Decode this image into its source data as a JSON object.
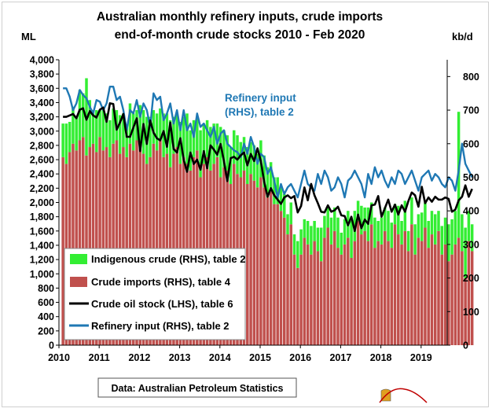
{
  "chart_data": {
    "type": "bar",
    "title_lines": [
      "Australian monthly refinery inputs, crude imports",
      "end-of-month crude stocks 2010 - Feb 2020"
    ],
    "left_axis_label": "ML",
    "right_axis_label": "kb/d",
    "left_ylim": [
      0,
      4000
    ],
    "right_ylim": [
      0,
      850
    ],
    "left_ticks": [
      "4,000",
      "3,800",
      "3,600",
      "3,400",
      "3,200",
      "3,000",
      "2,800",
      "2,600",
      "2,400",
      "2,200",
      "2,000",
      "1,800",
      "1,600",
      "1,400",
      "1,200",
      "1,000",
      "800",
      "600",
      "400",
      "200",
      "0"
    ],
    "right_ticks": [
      "800",
      "700",
      "600",
      "500",
      "400",
      "300",
      "200",
      "100",
      "0"
    ],
    "x_ticks": [
      "2010",
      "2011",
      "2012",
      "2013",
      "2014",
      "2015",
      "2016",
      "2017",
      "2018",
      "2019"
    ],
    "start_month": "2010-01",
    "grid": false,
    "annotation": [
      "Refinery input",
      "(RHS), table 2"
    ],
    "legend": {
      "placement": "bottom-left",
      "entries": [
        {
          "name": "Indigenous crude (RHS), table 2",
          "color": "#33ee33",
          "kind": "bar"
        },
        {
          "name": "Crude imports (RHS), table 4",
          "color": "#c0504d",
          "kind": "bar"
        },
        {
          "name": "Crude oil stock (LHS), table 6",
          "color": "#000000",
          "kind": "line"
        },
        {
          "name": "Refinery input (RHS), table 2",
          "color": "#1f78b4",
          "kind": "line"
        }
      ]
    },
    "source_note": "Data: Australian Petroleum Statistics",
    "series": [
      {
        "name": "Crude imports (RHS), table 4",
        "axis": "right",
        "color": "#c0504d",
        "values": [
          560,
          540,
          575,
          600,
          580,
          610,
          620,
          565,
          590,
          600,
          575,
          620,
          580,
          590,
          560,
          600,
          610,
          570,
          590,
          560,
          600,
          580,
          610,
          590,
          570,
          540,
          560,
          600,
          580,
          610,
          560,
          570,
          530,
          570,
          590,
          540,
          560,
          540,
          520,
          560,
          580,
          500,
          540,
          560,
          520,
          540,
          560,
          500,
          530,
          520,
          480,
          540,
          510,
          500,
          520,
          480,
          510,
          490,
          470,
          500,
          470,
          440,
          460,
          420,
          420,
          400,
          380,
          330,
          360,
          270,
          230,
          270,
          320,
          300,
          270,
          310,
          280,
          250,
          320,
          350,
          300,
          340,
          290,
          270,
          300,
          320,
          260,
          310,
          370,
          330,
          340,
          310,
          360,
          290,
          310,
          300,
          340,
          310,
          290,
          360,
          330,
          300,
          340,
          280,
          360,
          270,
          320,
          310,
          350,
          290,
          330,
          300,
          340,
          270,
          300,
          250,
          270,
          300,
          320,
          280,
          200,
          310,
          280
        ]
      },
      {
        "name": "Indigenous crude (RHS), table 2",
        "axis": "right",
        "color": "#33ee33",
        "values": [
          100,
          120,
          90,
          110,
          100,
          150,
          130,
          230,
          140,
          100,
          125,
          80,
          120,
          100,
          110,
          105,
          90,
          115,
          100,
          95,
          120,
          110,
          90,
          125,
          130,
          140,
          120,
          100,
          110,
          95,
          130,
          120,
          140,
          110,
          100,
          125,
          120,
          150,
          120,
          110,
          100,
          140,
          120,
          110,
          130,
          120,
          100,
          150,
          110,
          105,
          110,
          100,
          115,
          105,
          100,
          110,
          95,
          105,
          100,
          110,
          95,
          90,
          85,
          80,
          80,
          75,
          70,
          60,
          65,
          60,
          80,
          75,
          55,
          70,
          85,
          60,
          70,
          100,
          65,
          60,
          80,
          70,
          90,
          65,
          75,
          80,
          110,
          90,
          60,
          85,
          70,
          100,
          65,
          90,
          60,
          80,
          70,
          90,
          75,
          60,
          85,
          70,
          90,
          60,
          80,
          90,
          70,
          85,
          75,
          80,
          70,
          90,
          60,
          85,
          80,
          110,
          105,
          100,
          375,
          110,
          150,
          90,
          80
        ]
      },
      {
        "name": "Refinery input (RHS), table 2",
        "axis": "right",
        "color": "#1f78b4",
        "values": [
          765,
          765,
          740,
          700,
          720,
          760,
          745,
          735,
          710,
          690,
          730,
          725,
          700,
          720,
          770,
          770,
          730,
          740,
          700,
          640,
          700,
          690,
          730,
          680,
          720,
          700,
          650,
          750,
          730,
          740,
          670,
          690,
          720,
          660,
          700,
          640,
          700,
          640,
          660,
          620,
          690,
          650,
          660,
          640,
          620,
          650,
          600,
          630,
          640,
          600,
          590,
          580,
          575,
          560,
          600,
          570,
          620,
          590,
          540,
          570,
          560,
          510,
          530,
          490,
          440,
          480,
          450,
          470,
          480,
          460,
          440,
          480,
          520,
          480,
          470,
          460,
          510,
          480,
          520,
          500,
          460,
          470,
          500,
          480,
          440,
          490,
          500,
          520,
          500,
          480,
          440,
          510,
          480,
          530,
          500,
          520,
          490,
          470,
          500,
          480,
          520,
          510,
          480,
          500,
          520,
          490,
          460,
          500,
          510,
          520,
          490,
          510,
          500,
          480,
          470,
          500,
          490,
          460,
          520,
          600,
          540,
          520,
          500
        ]
      },
      {
        "name": "Crude oil stock (LHS), table 6",
        "axis": "left",
        "color": "#000000",
        "values": [
          3200,
          3200,
          3220,
          3240,
          3180,
          3300,
          3320,
          3160,
          3280,
          3220,
          3190,
          3300,
          3330,
          3130,
          3390,
          3380,
          3020,
          3120,
          3240,
          2920,
          2920,
          3050,
          3180,
          2720,
          3100,
          2820,
          3150,
          2980,
          2900,
          2870,
          3000,
          2780,
          3120,
          2750,
          2700,
          2900,
          2600,
          2430,
          2700,
          2540,
          2600,
          2460,
          2720,
          2480,
          2800,
          2740,
          2670,
          2820,
          2580,
          2300,
          2620,
          2640,
          2600,
          2660,
          2700,
          2520,
          2680,
          2580,
          2760,
          2580,
          2290,
          2080,
          2200,
          2100,
          2040,
          1980,
          2070,
          2100,
          2060,
          2090,
          1860,
          1950,
          2210,
          2030,
          2260,
          2100,
          1990,
          1870,
          1860,
          1960,
          1870,
          1890,
          1940,
          1820,
          1810,
          1680,
          1800,
          1600,
          1830,
          1640,
          1760,
          1700,
          1960,
          1970,
          2090,
          1800,
          1920,
          2040,
          1870,
          1970,
          1830,
          1960,
          1870,
          2020,
          2140,
          2100,
          1940,
          2220,
          1990,
          2070,
          2010,
          2080,
          2040,
          2040,
          2070,
          2050,
          1870,
          1900,
          2030,
          2080,
          2240,
          2080,
          2190
        ]
      }
    ]
  }
}
